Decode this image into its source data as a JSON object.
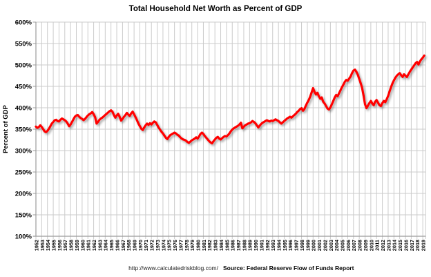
{
  "footer": {
    "url": "http://www.calculatedriskblog.com/",
    "source": "Source: Federal Reserve Flow of Funds Report"
  },
  "chart_data": {
    "type": "line",
    "title": "Total Household Net Worth as Percent of GDP",
    "xlabel": "",
    "ylabel": "Percent of GDP",
    "ylim": [
      100,
      600
    ],
    "ytick_step": 50,
    "ytick_labels": [
      "600%",
      "550%",
      "500%",
      "450%",
      "400%",
      "350%",
      "300%",
      "250%",
      "200%",
      "150%",
      "100%"
    ],
    "xtick_labels": [
      "1952",
      "1953",
      "1954",
      "1955",
      "1956",
      "1957",
      "1958",
      "1959",
      "1960",
      "1961",
      "1962",
      "1963",
      "1964",
      "1965",
      "1966",
      "1967",
      "1968",
      "1969",
      "1970",
      "1971",
      "1972",
      "1973",
      "1974",
      "1975",
      "1976",
      "1977",
      "1978",
      "1979",
      "1980",
      "1981",
      "1982",
      "1983",
      "1984",
      "1985",
      "1986",
      "1987",
      "1988",
      "1989",
      "1990",
      "1991",
      "1992",
      "1993",
      "1994",
      "1995",
      "1996",
      "1997",
      "1998",
      "1999",
      "2000",
      "2001",
      "2002",
      "2003",
      "2004",
      "2005",
      "2006",
      "2007",
      "2008",
      "2009",
      "2010",
      "2011",
      "2012",
      "2013",
      "2014",
      "2015",
      "2016",
      "2017",
      "2018",
      "2019"
    ],
    "grid": true,
    "legend": "none",
    "colors": {
      "line": "#FF0000",
      "grid": "#CBCBCB",
      "axis": "#9B9B9B",
      "text": "#000000"
    },
    "series": [
      {
        "name": "Total Household Net Worth as Percent of GDP",
        "x_start": 1952,
        "x_step": 0.25,
        "unit": "% of GDP",
        "values": [
          356,
          353,
          355,
          359,
          355,
          350,
          345,
          343,
          346,
          351,
          357,
          363,
          367,
          371,
          372,
          369,
          368,
          372,
          375,
          373,
          371,
          368,
          363,
          357,
          361,
          367,
          373,
          379,
          382,
          383,
          379,
          376,
          374,
          371,
          374,
          378,
          382,
          385,
          387,
          390,
          385,
          378,
          363,
          367,
          372,
          375,
          377,
          380,
          383,
          386,
          389,
          392,
          394,
          391,
          383,
          377,
          382,
          386,
          379,
          370,
          374,
          379,
          383,
          388,
          384,
          381,
          387,
          391,
          385,
          378,
          371,
          363,
          357,
          351,
          348,
          354,
          359,
          363,
          360,
          364,
          361,
          365,
          368,
          366,
          360,
          354,
          349,
          344,
          340,
          335,
          330,
          327,
          332,
          336,
          338,
          340,
          342,
          340,
          337,
          335,
          331,
          328,
          326,
          325,
          323,
          320,
          318,
          321,
          324,
          326,
          328,
          331,
          328,
          333,
          339,
          342,
          339,
          334,
          330,
          326,
          322,
          319,
          317,
          322,
          326,
          330,
          332,
          328,
          326,
          329,
          332,
          334,
          333,
          336,
          340,
          345,
          349,
          352,
          354,
          356,
          358,
          361,
          365,
          352,
          356,
          359,
          361,
          363,
          364,
          366,
          369,
          367,
          364,
          359,
          354,
          358,
          362,
          365,
          367,
          369,
          371,
          369,
          368,
          370,
          369,
          371,
          373,
          371,
          369,
          366,
          363,
          366,
          369,
          372,
          375,
          377,
          379,
          377,
          380,
          383,
          386,
          390,
          393,
          397,
          399,
          393,
          397,
          405,
          412,
          418,
          426,
          436,
          446,
          437,
          431,
          435,
          427,
          421,
          424,
          414,
          410,
          404,
          398,
          396,
          401,
          408,
          416,
          424,
          430,
          427,
          434,
          441,
          448,
          454,
          461,
          465,
          463,
          468,
          473,
          481,
          487,
          489,
          484,
          477,
          467,
          457,
          446,
          428,
          408,
          399,
          405,
          411,
          416,
          410,
          406,
          414,
          418,
          412,
          406,
          404,
          411,
          416,
          413,
          420,
          428,
          438,
          448,
          457,
          464,
          470,
          475,
          478,
          481,
          476,
          472,
          478,
          475,
          472,
          478,
          484,
          489,
          494,
          499,
          504,
          507,
          501,
          508,
          513,
          517,
          522
        ]
      }
    ]
  }
}
